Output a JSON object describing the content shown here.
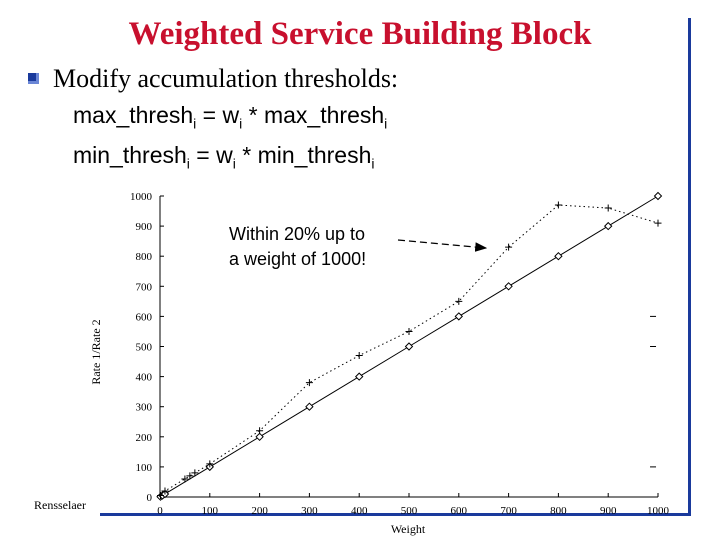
{
  "slide": {
    "title": "Weighted Service Building Block",
    "bullet": "Modify accumulation thresholds:",
    "formula1": {
      "lhs": "max_thresh",
      "lhs_sub": "i",
      "eq": " = w",
      "w_sub": "i",
      "rhs": " * max_thresh",
      "rhs_sub": "i"
    },
    "formula2": {
      "lhs": "min_thresh",
      "lhs_sub": "i",
      "eq": " = w",
      "w_sub": "i",
      "rhs": " * min_thresh",
      "rhs_sub": "i"
    },
    "logo": "Rensselaer"
  },
  "colors": {
    "title": "#c8102e",
    "frame": "#1a3a9c"
  },
  "chart_data": {
    "type": "line",
    "xlabel": "Weight",
    "ylabel": "Rate 1/Rate 2",
    "xlim": [
      0,
      1000
    ],
    "ylim": [
      0,
      1000
    ],
    "xticks": [
      0,
      100,
      200,
      300,
      400,
      500,
      600,
      700,
      800,
      900,
      1000
    ],
    "yticks": [
      0,
      100,
      200,
      300,
      400,
      500,
      600,
      700,
      800,
      900,
      1000
    ],
    "annotation": [
      "Within 20% up to",
      "a weight of 1000!"
    ],
    "series": [
      {
        "style": "solid-diamond",
        "x": [
          1,
          5,
          10,
          100,
          200,
          300,
          400,
          500,
          600,
          700,
          800,
          900,
          1000
        ],
        "y": [
          1,
          5,
          10,
          100,
          200,
          300,
          400,
          500,
          600,
          700,
          800,
          900,
          1000
        ]
      },
      {
        "style": "dotted-plus",
        "x": [
          1,
          10,
          50,
          60,
          70,
          100,
          200,
          300,
          400,
          500,
          600,
          700,
          800,
          900,
          1000
        ],
        "y": [
          5,
          20,
          60,
          70,
          80,
          110,
          220,
          380,
          470,
          550,
          650,
          830,
          970,
          960,
          910
        ]
      }
    ],
    "dashes_right": [
      {
        "x": 990,
        "y": 600
      },
      {
        "x": 990,
        "y": 500
      },
      {
        "x": 990,
        "y": 100
      }
    ]
  }
}
